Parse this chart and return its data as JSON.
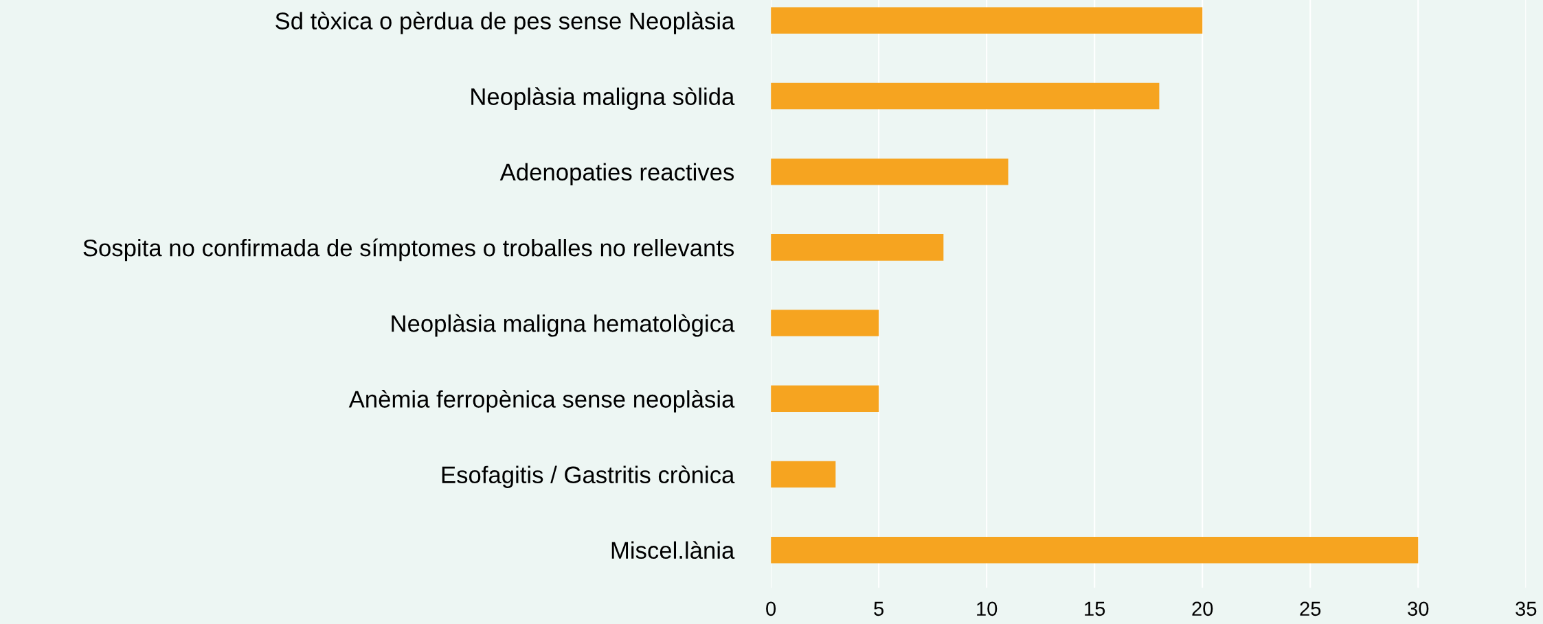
{
  "chart_data": {
    "type": "bar",
    "orientation": "horizontal",
    "categories": [
      "Sd tòxica o pèrdua de pes sense Neoplàsia",
      "Neoplàsia maligna sòlida",
      "Adenopaties reactives",
      "Sospita no confirmada de símptomes o troballes no rellevants",
      "Neoplàsia maligna hematològica",
      "Anèmia ferropènica sense neoplàsia",
      "Esofagitis / Gastritis crònica",
      "Miscel.lània"
    ],
    "values": [
      20,
      18,
      11,
      8,
      5,
      5,
      3,
      30
    ],
    "color": "#f6a420",
    "xlim": [
      0,
      35
    ],
    "xticks": [
      0,
      5,
      10,
      15,
      20,
      25,
      30,
      35
    ],
    "grid": "x"
  }
}
